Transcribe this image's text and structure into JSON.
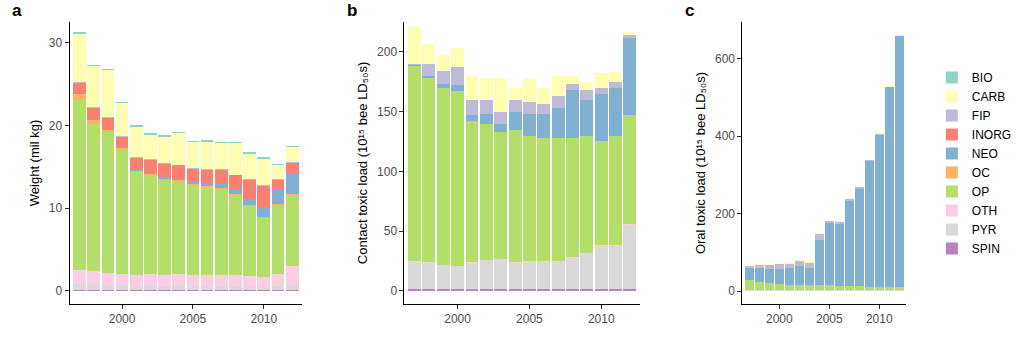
{
  "chart_data": [
    {
      "type": "bar",
      "title": "a",
      "y_label": "Weight (mil kg)",
      "stacked": true,
      "grid": false,
      "x": [
        1997,
        1998,
        1999,
        2000,
        2001,
        2002,
        2003,
        2004,
        2005,
        2006,
        2007,
        2008,
        2009,
        2010,
        2011,
        2012
      ],
      "xlim": [
        1996.3,
        2012.7
      ],
      "xticks": [
        2000,
        2005,
        2010
      ],
      "ylim": [
        -1.6,
        32.5
      ],
      "yticks": [
        0,
        10,
        20,
        30
      ],
      "series": [
        {
          "name": "BIO",
          "color": "#8DD3C7",
          "values": [
            0.2,
            0.2,
            0.2,
            0.2,
            0.2,
            0.2,
            0.2,
            0.2,
            0.2,
            0.2,
            0.2,
            0.2,
            0.2,
            0.2,
            0.2,
            0.2
          ]
        },
        {
          "name": "CARB",
          "color": "#FFFFB3",
          "values": [
            5.8,
            4.9,
            5.6,
            3.9,
            3.7,
            2.9,
            3.2,
            3.8,
            3.1,
            3.3,
            3.1,
            3.8,
            3.0,
            3.2,
            1.6,
            1.8
          ]
        },
        {
          "name": "FIP",
          "color": "#BEBADA",
          "values": [
            0.1,
            0.1,
            0.1,
            0.1,
            0.1,
            0.1,
            0.1,
            0.1,
            0.1,
            0.1,
            0.1,
            0.1,
            0.1,
            0.1,
            0.1,
            0.1
          ]
        },
        {
          "name": "INORG",
          "color": "#FB8072",
          "values": [
            1.3,
            1.4,
            1.4,
            1.3,
            1.5,
            1.6,
            1.6,
            1.6,
            1.5,
            1.6,
            1.7,
            1.7,
            2.3,
            2.5,
            1.2,
            1.2
          ]
        },
        {
          "name": "NEO",
          "color": "#80B1D3",
          "values": [
            0.1,
            0.1,
            0.1,
            0.1,
            0.1,
            0.1,
            0.2,
            0.2,
            0.3,
            0.4,
            0.5,
            0.6,
            0.8,
            1.2,
            1.8,
            2.6
          ]
        },
        {
          "name": "OC",
          "color": "#FDB462",
          "values": [
            0.7,
            0.5,
            0.3,
            0.2,
            0.1,
            0.1,
            0.1,
            0.1,
            0.1,
            0.1,
            0.1,
            0.1,
            0.1,
            0.1,
            0.1,
            0.1
          ]
        },
        {
          "name": "OP",
          "color": "#B3DE69",
          "values": [
            20.5,
            17.8,
            17.0,
            15.0,
            12.5,
            12.0,
            11.6,
            11.2,
            11.0,
            10.7,
            10.5,
            9.7,
            8.5,
            7.2,
            8.3,
            8.6
          ]
        },
        {
          "name": "OTH",
          "color": "#FCCDE5",
          "values": [
            1.7,
            1.5,
            1.4,
            1.4,
            1.3,
            1.4,
            1.3,
            1.4,
            1.3,
            1.3,
            1.3,
            1.3,
            1.3,
            1.2,
            1.5,
            2.3
          ]
        },
        {
          "name": "PYR",
          "color": "#D9D9D9",
          "values": [
            0.8,
            0.8,
            0.7,
            0.6,
            0.5,
            0.6,
            0.5,
            0.6,
            0.5,
            0.5,
            0.5,
            0.5,
            0.4,
            0.4,
            0.5,
            0.6
          ]
        },
        {
          "name": "SPIN",
          "color": "#BC80BD",
          "values": [
            0.05,
            0.05,
            0.05,
            0.05,
            0.05,
            0.05,
            0.05,
            0.05,
            0.05,
            0.05,
            0.05,
            0.05,
            0.05,
            0.05,
            0.05,
            0.05
          ]
        }
      ]
    },
    {
      "type": "bar",
      "title": "b",
      "y_label": "Contact toxic load (10¹⁵ bee LD₅₀s)",
      "stacked": true,
      "grid": false,
      "x": [
        1997,
        1998,
        1999,
        2000,
        2001,
        2002,
        2003,
        2004,
        2005,
        2006,
        2007,
        2008,
        2009,
        2010,
        2011,
        2012
      ],
      "xlim": [
        1996.3,
        2012.7
      ],
      "xticks": [
        2000,
        2005,
        2010
      ],
      "ylim": [
        -11,
        225
      ],
      "yticks": [
        0,
        50,
        100,
        150,
        200
      ],
      "series": [
        {
          "name": "BIO",
          "color": "#8DD3C7",
          "values": [
            0,
            0,
            0,
            0,
            0,
            0,
            0,
            0,
            0,
            0,
            0,
            0,
            0,
            0,
            0,
            0
          ]
        },
        {
          "name": "CARB",
          "color": "#FFFFB3",
          "values": [
            31,
            17,
            13,
            16,
            20,
            18,
            28,
            10,
            19,
            14,
            17,
            7,
            7,
            12,
            8,
            3
          ]
        },
        {
          "name": "FIP",
          "color": "#BEBADA",
          "values": [
            1,
            10,
            11,
            15,
            13,
            12,
            10,
            10,
            10,
            8,
            10,
            5,
            8,
            5,
            5,
            2
          ]
        },
        {
          "name": "INORG",
          "color": "#FB8072",
          "values": [
            0,
            0,
            0,
            0,
            0,
            0,
            0,
            0,
            0,
            0,
            0,
            0,
            0,
            0,
            0,
            0
          ]
        },
        {
          "name": "NEO",
          "color": "#80B1D3",
          "values": [
            1,
            2,
            3,
            5,
            5,
            8,
            7,
            15,
            18,
            20,
            25,
            40,
            30,
            40,
            40,
            65
          ]
        },
        {
          "name": "OC",
          "color": "#FDB462",
          "values": [
            0,
            0,
            0,
            0,
            0,
            0,
            0,
            0,
            0,
            0,
            0,
            0,
            0,
            0,
            0,
            0
          ]
        },
        {
          "name": "OP",
          "color": "#B3DE69",
          "values": [
            163,
            154,
            148,
            146,
            118,
            114,
            106,
            111,
            105,
            103,
            103,
            100,
            98,
            87,
            92,
            91
          ]
        },
        {
          "name": "OTH",
          "color": "#FCCDE5",
          "values": [
            0.5,
            0.5,
            0.5,
            0.5,
            0.5,
            0.5,
            0.5,
            0.5,
            0.5,
            0.5,
            0.5,
            0.5,
            0.5,
            0.5,
            0.5,
            0.5
          ]
        },
        {
          "name": "PYR",
          "color": "#D9D9D9",
          "values": [
            23,
            22,
            20,
            19,
            22,
            24,
            25,
            22,
            23,
            23,
            23,
            26,
            30,
            36,
            36,
            54
          ]
        },
        {
          "name": "SPIN",
          "color": "#BC80BD",
          "values": [
            1.5,
            1.5,
            1.5,
            1.5,
            1.5,
            1.5,
            1.5,
            1.5,
            1.5,
            1.5,
            1.5,
            1.5,
            1.5,
            1.5,
            1.5,
            1.5
          ]
        }
      ]
    },
    {
      "type": "bar",
      "title": "c",
      "y_label": "Oral toxic load (10¹⁵ bee LD₅₀s)",
      "stacked": true,
      "grid": false,
      "legend": "right",
      "x": [
        1997,
        1998,
        1999,
        2000,
        2001,
        2002,
        2003,
        2004,
        2005,
        2006,
        2007,
        2008,
        2009,
        2010,
        2011,
        2012
      ],
      "xlim": [
        1996.3,
        2012.7
      ],
      "xticks": [
        2000,
        2005,
        2010
      ],
      "ylim": [
        -33,
        695
      ],
      "yticks": [
        0,
        200,
        400,
        600
      ],
      "series": [
        {
          "name": "BIO",
          "color": "#8DD3C7",
          "values": [
            0,
            0,
            0,
            0,
            0,
            0,
            0,
            0,
            0,
            0,
            0,
            0,
            0,
            0,
            0,
            0
          ]
        },
        {
          "name": "CARB",
          "color": "#FFFFB3",
          "values": [
            2,
            2,
            2,
            2,
            2,
            2,
            2,
            2,
            2,
            2,
            2,
            2,
            2,
            2,
            2,
            2
          ]
        },
        {
          "name": "FIP",
          "color": "#BEBADA",
          "values": [
            5,
            8,
            10,
            12,
            12,
            14,
            12,
            15,
            5,
            5,
            5,
            3,
            3,
            2,
            2,
            1
          ]
        },
        {
          "name": "INORG",
          "color": "#FB8072",
          "values": [
            0,
            0,
            0,
            0,
            0,
            0,
            0,
            0,
            0,
            0,
            0,
            0,
            0,
            0,
            0,
            0
          ]
        },
        {
          "name": "NEO",
          "color": "#80B1D3",
          "values": [
            33,
            37,
            37,
            39,
            42,
            47,
            45,
            117,
            160,
            159,
            220,
            252,
            323,
            393,
            515,
            648
          ]
        },
        {
          "name": "OC",
          "color": "#FDB462",
          "values": [
            0,
            0,
            0,
            0,
            0,
            0,
            0,
            0,
            0,
            0,
            0,
            0,
            0,
            0,
            0,
            0
          ]
        },
        {
          "name": "OP",
          "color": "#B3DE69",
          "values": [
            25,
            20,
            18,
            16,
            14,
            14,
            13,
            13,
            12,
            11,
            10,
            10,
            9,
            8,
            8,
            8
          ]
        },
        {
          "name": "OTH",
          "color": "#FCCDE5",
          "values": [
            0,
            0,
            0,
            0,
            0,
            0,
            0,
            0,
            0,
            0,
            0,
            0,
            0,
            0,
            0,
            0
          ]
        },
        {
          "name": "PYR",
          "color": "#D9D9D9",
          "values": [
            3,
            3,
            3,
            3,
            3,
            3,
            3,
            3,
            3,
            3,
            3,
            3,
            3,
            3,
            3,
            3
          ]
        },
        {
          "name": "SPIN",
          "color": "#BC80BD",
          "values": [
            0,
            0,
            0,
            0,
            0,
            0,
            0,
            0,
            0,
            0,
            0,
            0,
            0,
            0,
            0,
            0
          ]
        }
      ]
    }
  ]
}
